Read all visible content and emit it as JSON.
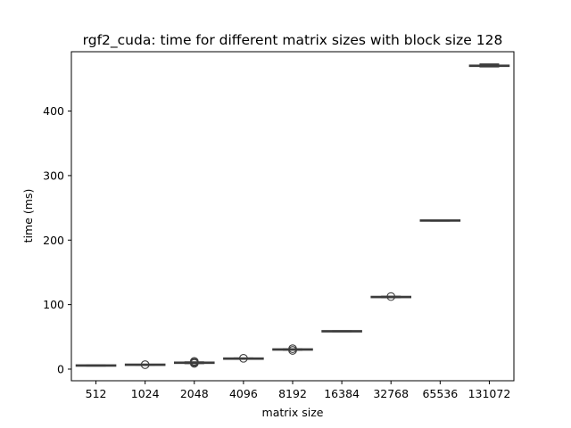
{
  "chart_data": {
    "type": "box",
    "title": "rgf2_cuda: time for different matrix sizes with block size 128",
    "xlabel": "matrix size",
    "ylabel": "time (ms)",
    "ylim": [
      -18,
      492
    ],
    "yticks": [
      0,
      100,
      200,
      300,
      400
    ],
    "grid": false,
    "box_color": "#3b75af",
    "line_color": "#3c3c3c",
    "categories": [
      "512",
      "1024",
      "2048",
      "4096",
      "8192",
      "16384",
      "32768",
      "65536",
      "131072"
    ],
    "boxes": [
      {
        "category": "512",
        "whislo": 5.0,
        "q1": 5.4,
        "median": 5.6,
        "q3": 5.8,
        "whishi": 6.2,
        "fliers": []
      },
      {
        "category": "1024",
        "whislo": 6.3,
        "q1": 6.6,
        "median": 6.8,
        "q3": 7.0,
        "whishi": 7.3,
        "fliers": [
          6.9
        ]
      },
      {
        "category": "2048",
        "whislo": 8.8,
        "q1": 9.5,
        "median": 9.9,
        "q3": 10.3,
        "whishi": 11.0,
        "fliers": [
          9.0,
          10.5,
          12.0
        ]
      },
      {
        "category": "4096",
        "whislo": 15.6,
        "q1": 16.0,
        "median": 16.3,
        "q3": 16.6,
        "whishi": 17.0,
        "fliers": [
          16.8
        ]
      },
      {
        "category": "8192",
        "whislo": 29.6,
        "q1": 30.1,
        "median": 30.4,
        "q3": 30.8,
        "whishi": 31.2,
        "fliers": [
          29.0,
          31.6
        ]
      },
      {
        "category": "16384",
        "whislo": 58.2,
        "q1": 58.5,
        "median": 58.7,
        "q3": 58.9,
        "whishi": 59.2,
        "fliers": []
      },
      {
        "category": "32768",
        "whislo": 110.8,
        "q1": 111.4,
        "median": 111.8,
        "q3": 112.2,
        "whishi": 112.8,
        "fliers": [
          112.5
        ]
      },
      {
        "category": "65536",
        "whislo": 229.6,
        "q1": 230.0,
        "median": 230.3,
        "q3": 230.6,
        "whishi": 231.0,
        "fliers": []
      },
      {
        "category": "131072",
        "whislo": 468.6,
        "q1": 469.4,
        "median": 470.0,
        "q3": 471.0,
        "whishi": 472.8,
        "fliers": []
      }
    ]
  }
}
